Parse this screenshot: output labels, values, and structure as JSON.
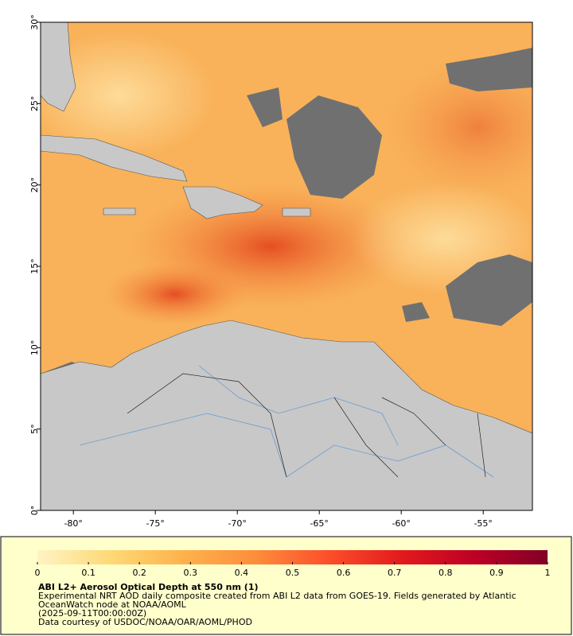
{
  "map": {
    "xlim": [
      -82,
      -52
    ],
    "ylim": [
      0,
      30
    ],
    "xticks": [
      {
        "value": -80,
        "label": "-80°"
      },
      {
        "value": -75,
        "label": "-75°"
      },
      {
        "value": -70,
        "label": "-70°"
      },
      {
        "value": -65,
        "label": "-65°"
      },
      {
        "value": -60,
        "label": "-60°"
      },
      {
        "value": -55,
        "label": "-55°"
      }
    ],
    "yticks": [
      {
        "value": 0,
        "label": "0°"
      },
      {
        "value": 5,
        "label": "5°"
      },
      {
        "value": 10,
        "label": "10°"
      },
      {
        "value": 15,
        "label": "15°"
      },
      {
        "value": 20,
        "label": "20°"
      },
      {
        "value": 25,
        "label": "25°"
      },
      {
        "value": 30,
        "label": "30°"
      }
    ]
  },
  "colorbar": {
    "lim": [
      0,
      1
    ],
    "ticks": [
      0,
      0.1,
      0.2,
      0.3,
      0.4,
      0.5,
      0.6,
      0.7,
      0.8,
      0.9,
      1
    ],
    "colors": [
      "#fff3c4",
      "#fed976",
      "#feb24c",
      "#fd8d3c",
      "#fc4e2a",
      "#e31a1c",
      "#bd0026",
      "#800026"
    ]
  },
  "caption": {
    "title": "ABI L2+ Aerosol Optical Depth at 550 nm (1)",
    "lines": [
      "Experimental NRT AOD daily composite created from ABI L2 data from GOES-19. Fields generated by Atlantic",
      "OceanWatch node at NOAA/AOML",
      "(2025-09-11T00:00:00Z)",
      "Data courtesy of USDOC/NOAA/OAR/AOML/PHOD"
    ]
  }
}
